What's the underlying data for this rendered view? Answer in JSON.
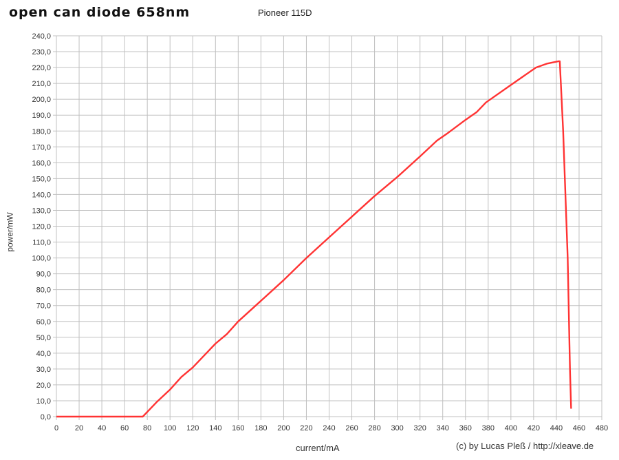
{
  "chart_data": {
    "type": "line",
    "title": "open can diode 658nm",
    "subtitle": "Pioneer 115D",
    "xlabel": "current/mA",
    "ylabel": "power/mW",
    "credit": "(c) by Lucas Pleß / http://xleave.de",
    "xlim": [
      0,
      480
    ],
    "ylim": [
      0,
      240
    ],
    "x_ticks": [
      "0",
      "20",
      "40",
      "60",
      "80",
      "100",
      "120",
      "140",
      "160",
      "180",
      "200",
      "220",
      "240",
      "260",
      "280",
      "300",
      "320",
      "340",
      "360",
      "380",
      "400",
      "420",
      "440",
      "460",
      "480"
    ],
    "y_ticks": [
      "0,0",
      "10,0",
      "20,0",
      "30,0",
      "40,0",
      "50,0",
      "60,0",
      "70,0",
      "80,0",
      "90,0",
      "100,0",
      "110,0",
      "120,0",
      "130,0",
      "140,0",
      "150,0",
      "160,0",
      "170,0",
      "180,0",
      "190,0",
      "200,0",
      "210,0",
      "220,0",
      "230,0",
      "240,0"
    ],
    "grid": true,
    "legend": "none",
    "series": [
      {
        "name": "power",
        "color": "#ff3333",
        "x": [
          0,
          76,
          88,
          100,
          110,
          120,
          140,
          150,
          160,
          180,
          200,
          220,
          240,
          260,
          280,
          300,
          320,
          335,
          345,
          360,
          370,
          378,
          400,
          422,
          432,
          442,
          443,
          446,
          450,
          452,
          453
        ],
        "values": [
          0,
          0,
          9,
          17,
          25,
          31,
          46,
          52,
          60,
          73,
          86,
          100,
          113,
          126,
          139,
          151,
          164,
          174,
          179,
          187,
          192,
          198,
          209,
          220,
          222.5,
          224,
          224,
          180,
          100,
          30,
          5
        ]
      }
    ]
  },
  "colors": {
    "line": "#ff3333",
    "grid": "#c0c0c0",
    "text": "#333333"
  }
}
